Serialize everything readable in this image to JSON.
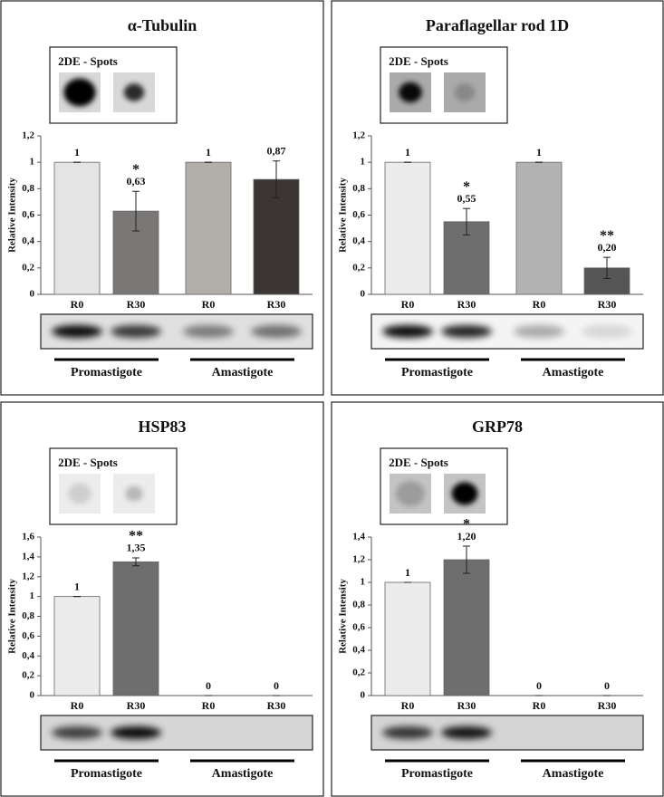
{
  "chart_data": [
    {
      "type": "bar",
      "title": "α-Tubulin",
      "inset_label": "2DE - Spots",
      "ylabel": "Relative Intensity",
      "categories": [
        "R0",
        "R30",
        "R0",
        "R30"
      ],
      "groups": [
        "Promastigote",
        "Amastigote"
      ],
      "values": [
        1,
        0.63,
        1,
        0.87
      ],
      "value_labels": [
        "1",
        "0,63",
        "1",
        "0,87"
      ],
      "errors": [
        0,
        0.15,
        0,
        0.14
      ],
      "colors": [
        "#e4e4e4",
        "#7a7876",
        "#b2afab",
        "#3b3634"
      ],
      "annotations": [
        {
          "index": 1,
          "text": "*"
        }
      ],
      "ylim": [
        0,
        1.2
      ],
      "yticks": [
        0,
        {
          "value": 0.2,
          "label": "0,2"
        },
        {
          "value": 0.4,
          "label": "0,4"
        },
        {
          "value": 0.6,
          "label": "0,6"
        },
        {
          "value": 0.8,
          "label": "0,8"
        },
        1,
        {
          "value": 1.2,
          "label": "1,2"
        }
      ]
    },
    {
      "type": "bar",
      "title": "Paraflagellar rod 1D",
      "inset_label": "2DE - Spots",
      "ylabel": "Relative Intensity",
      "categories": [
        "R0",
        "R30",
        "R0",
        "R30"
      ],
      "groups": [
        "Promastigote",
        "Amastigote"
      ],
      "values": [
        1,
        0.55,
        1,
        0.2
      ],
      "value_labels": [
        "1",
        "0,55",
        "1",
        "0,20"
      ],
      "errors": [
        0,
        0.1,
        0,
        0.08
      ],
      "colors": [
        "#ececec",
        "#6e6e6e",
        "#b3b3b3",
        "#555555"
      ],
      "annotations": [
        {
          "index": 1,
          "text": "*"
        },
        {
          "index": 3,
          "text": "**"
        }
      ],
      "ylim": [
        0,
        1.2
      ],
      "yticks": [
        0,
        {
          "value": 0.2,
          "label": "0,2"
        },
        {
          "value": 0.4,
          "label": "0,4"
        },
        {
          "value": 0.6,
          "label": "0,6"
        },
        {
          "value": 0.8,
          "label": "0,8"
        },
        1,
        {
          "value": 1.2,
          "label": "1,2"
        }
      ]
    },
    {
      "type": "bar",
      "title": "HSP83",
      "inset_label": "2DE - Spots",
      "ylabel": "Relative Intensity",
      "categories": [
        "R0",
        "R30",
        "R0",
        "R30"
      ],
      "groups": [
        "Promastigote",
        "Amastigote"
      ],
      "values": [
        1,
        1.35,
        0,
        0
      ],
      "value_labels": [
        "1",
        "1,35",
        "0",
        "0"
      ],
      "errors": [
        0,
        0.04,
        0,
        0
      ],
      "colors": [
        "#ececec",
        "#6e6e6e",
        "#b3b3b3",
        "#555555"
      ],
      "annotations": [
        {
          "index": 1,
          "text": "**"
        }
      ],
      "ylim": [
        0,
        1.6
      ],
      "yticks": [
        0,
        {
          "value": 0.2,
          "label": "0,2"
        },
        {
          "value": 0.4,
          "label": "0,4"
        },
        {
          "value": 0.6,
          "label": "0,6"
        },
        {
          "value": 0.8,
          "label": "0,8"
        },
        1,
        {
          "value": 1.2,
          "label": "1,2"
        },
        {
          "value": 1.4,
          "label": "1,4"
        },
        {
          "value": 1.6,
          "label": "1,6"
        }
      ]
    },
    {
      "type": "bar",
      "title": "GRP78",
      "inset_label": "2DE - Spots",
      "ylabel": "Relative Intensity",
      "categories": [
        "R0",
        "R30",
        "R0",
        "R30"
      ],
      "groups": [
        "Promastigote",
        "Amastigote"
      ],
      "values": [
        1,
        1.2,
        0,
        0
      ],
      "value_labels": [
        "1",
        "1,20",
        "0",
        "0"
      ],
      "errors": [
        0,
        0.12,
        0,
        0
      ],
      "colors": [
        "#ececec",
        "#6e6e6e",
        "#b3b3b3",
        "#555555"
      ],
      "annotations": [
        {
          "index": 1,
          "text": "*"
        }
      ],
      "ylim": [
        0,
        1.4
      ],
      "yticks": [
        0,
        {
          "value": 0.2,
          "label": "0,2"
        },
        {
          "value": 0.4,
          "label": "0,4"
        },
        {
          "value": 0.6,
          "label": "0,6"
        },
        {
          "value": 0.8,
          "label": "0,8"
        },
        1,
        {
          "value": 1.2,
          "label": "1,2"
        },
        {
          "value": 1.4,
          "label": "1,4"
        }
      ]
    }
  ]
}
